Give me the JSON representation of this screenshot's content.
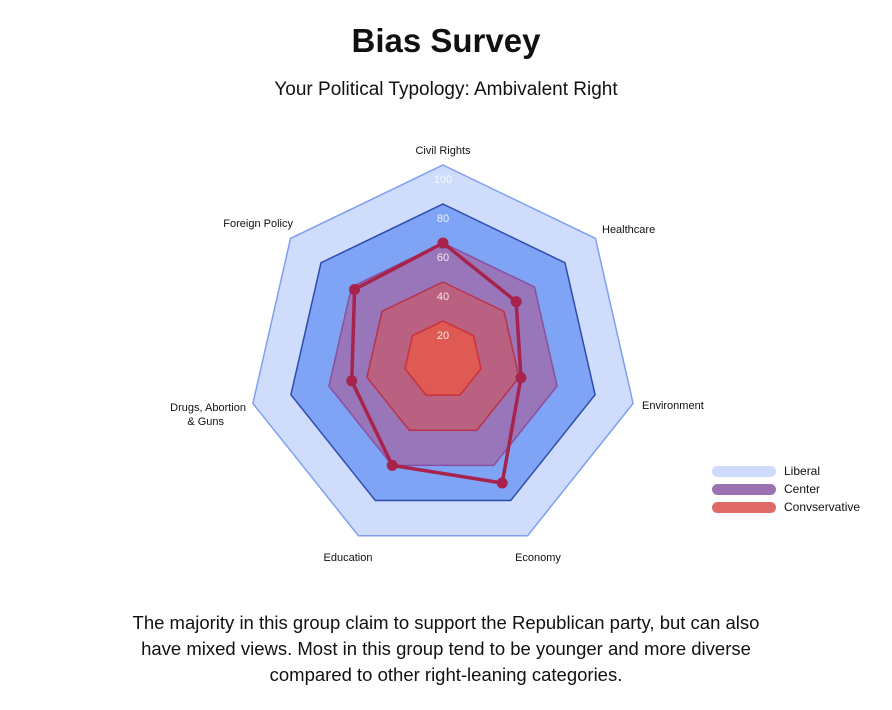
{
  "title": "Bias Survey",
  "subtitle": "Your Political Typology: Ambivalent Right",
  "description": "The majority in this group claim to support the Republican party, but can also have mixed views. Most in this group tend to be younger and more diverse compared to other right-leaning categories.",
  "chart_data": {
    "type": "radar",
    "axes": [
      "Civil Rights",
      "Healthcare",
      "Environment",
      "Economy",
      "Education",
      "Drugs, Abortion & Guns",
      "Foreign Policy"
    ],
    "axis_label_lines": [
      [
        "Civil Rights"
      ],
      [
        "Healthcare"
      ],
      [
        "Environment"
      ],
      [
        "Economy"
      ],
      [
        "Education"
      ],
      [
        "Drugs, Abortion",
        "& Guns"
      ],
      [
        "Foreign Policy"
      ]
    ],
    "range": [
      0,
      100
    ],
    "ticks": [
      "20",
      "40",
      "60",
      "80",
      "100"
    ],
    "values": [
      60,
      48,
      41,
      70,
      60,
      48,
      58
    ],
    "bands": [
      {
        "level": 100,
        "fill": "#d0dcfb",
        "stroke": "#7f9ff3"
      },
      {
        "level": 80,
        "fill": "#7fa3f5",
        "stroke": "#2c4cad"
      },
      {
        "level": 60,
        "fill": "#9c6fae",
        "stroke": "#8a4fa0"
      },
      {
        "level": 40,
        "fill": "#c65a6e",
        "stroke": "#b8334a"
      },
      {
        "level": 20,
        "fill": "#df5a52",
        "stroke": "#c9323c"
      }
    ],
    "line_color": "#a8234b",
    "legend_position": "right",
    "legend": [
      {
        "label": "Liberal",
        "color": "#cfdbfb"
      },
      {
        "label": "Center",
        "color": "#9a72b1"
      },
      {
        "label": "Convservative",
        "color": "#e06a68"
      }
    ]
  }
}
